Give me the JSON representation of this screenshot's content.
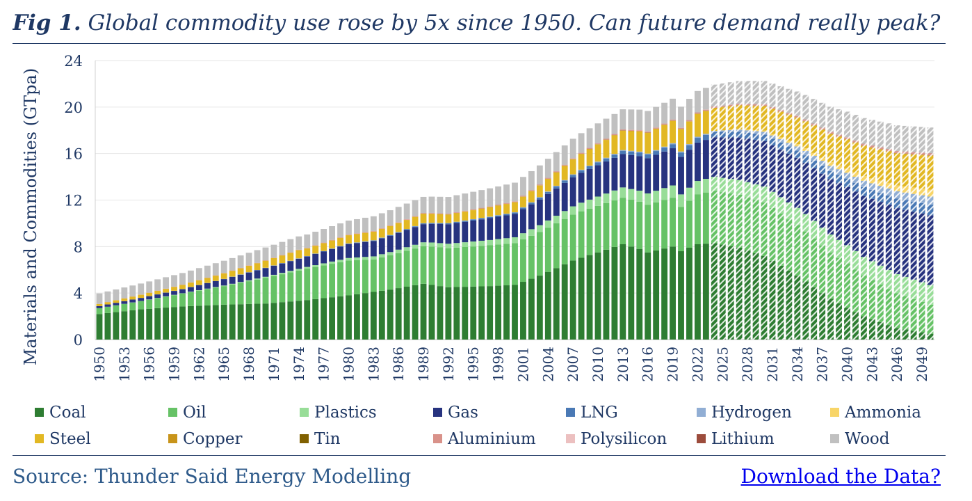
{
  "header": {
    "fig_label": "Fig 1.",
    "title": "Global commodity use rose by 5x since 1950. Can future demand really peak?"
  },
  "footer": {
    "source": "Source: Thunder Said Energy Modelling",
    "download_link": "Download the Data?"
  },
  "chart_data": {
    "type": "bar",
    "stacked": true,
    "projection_from_year": 2024,
    "projection_style": "hatched",
    "ylabel": "Materials and Commodities (GTpa)",
    "xlabel": "",
    "ylim": [
      0,
      24
    ],
    "yticks": [
      0,
      4,
      8,
      12,
      16,
      20,
      24
    ],
    "grid": "horizontal",
    "legend_position": "bottom",
    "x_start": 1950,
    "x_end": 2050,
    "x_tick_labels": [
      "1950",
      "1953",
      "1956",
      "1959",
      "1962",
      "1965",
      "1968",
      "1971",
      "1974",
      "1977",
      "1980",
      "1983",
      "1986",
      "1989",
      "1992",
      "1995",
      "1998",
      "2001",
      "2004",
      "2007",
      "2010",
      "2013",
      "2016",
      "2019",
      "2022",
      "2025",
      "2028",
      "2031",
      "2034",
      "2037",
      "2040",
      "2043",
      "2046",
      "2049"
    ],
    "series": [
      {
        "name": "Coal",
        "color": "#2e7d32",
        "knots": [
          [
            1950,
            2.2
          ],
          [
            1955,
            2.6
          ],
          [
            1960,
            2.85
          ],
          [
            1965,
            3.0
          ],
          [
            1970,
            3.1
          ],
          [
            1975,
            3.4
          ],
          [
            1980,
            3.8
          ],
          [
            1985,
            4.3
          ],
          [
            1989,
            4.8
          ],
          [
            1992,
            4.5
          ],
          [
            1997,
            4.6
          ],
          [
            2000,
            4.7
          ],
          [
            2003,
            5.5
          ],
          [
            2007,
            6.8
          ],
          [
            2010,
            7.5
          ],
          [
            2013,
            8.2
          ],
          [
            2015,
            7.8
          ],
          [
            2016,
            7.5
          ],
          [
            2019,
            8.0
          ],
          [
            2020,
            7.6
          ],
          [
            2022,
            8.2
          ],
          [
            2024,
            8.3
          ],
          [
            2027,
            7.9
          ],
          [
            2030,
            7.2
          ],
          [
            2034,
            5.5
          ],
          [
            2038,
            3.5
          ],
          [
            2042,
            2.0
          ],
          [
            2046,
            1.0
          ],
          [
            2050,
            0.5
          ]
        ]
      },
      {
        "name": "Oil",
        "color": "#66c266",
        "knots": [
          [
            1950,
            0.5
          ],
          [
            1955,
            0.7
          ],
          [
            1960,
            1.1
          ],
          [
            1965,
            1.6
          ],
          [
            1970,
            2.2
          ],
          [
            1975,
            2.7
          ],
          [
            1980,
            3.0
          ],
          [
            1983,
            2.8
          ],
          [
            1990,
            3.3
          ],
          [
            2000,
            3.6
          ],
          [
            2008,
            4.0
          ],
          [
            2013,
            4.0
          ],
          [
            2019,
            4.2
          ],
          [
            2020,
            3.8
          ],
          [
            2022,
            4.3
          ],
          [
            2024,
            4.5
          ],
          [
            2030,
            4.6
          ],
          [
            2035,
            4.3
          ],
          [
            2040,
            3.8
          ],
          [
            2045,
            3.1
          ],
          [
            2050,
            2.5
          ]
        ]
      },
      {
        "name": "Plastics",
        "color": "#98dd98",
        "knots": [
          [
            1950,
            0.0
          ],
          [
            1965,
            0.05
          ],
          [
            1975,
            0.15
          ],
          [
            1990,
            0.35
          ],
          [
            2000,
            0.5
          ],
          [
            2010,
            0.8
          ],
          [
            2024,
            1.2
          ],
          [
            2035,
            1.5
          ],
          [
            2050,
            1.7
          ]
        ]
      },
      {
        "name": "Gas",
        "color": "#27337f",
        "knots": [
          [
            1950,
            0.18
          ],
          [
            1960,
            0.35
          ],
          [
            1970,
            0.75
          ],
          [
            1975,
            0.9
          ],
          [
            1980,
            1.2
          ],
          [
            1990,
            1.6
          ],
          [
            2000,
            2.0
          ],
          [
            2010,
            2.7
          ],
          [
            2019,
            3.2
          ],
          [
            2022,
            3.3
          ],
          [
            2024,
            3.4
          ],
          [
            2030,
            3.9
          ],
          [
            2035,
            4.4
          ],
          [
            2040,
            5.0
          ],
          [
            2045,
            5.6
          ],
          [
            2050,
            6.0
          ]
        ]
      },
      {
        "name": "LNG",
        "color": "#4a79b5",
        "knots": [
          [
            1950,
            0.0
          ],
          [
            1975,
            0.02
          ],
          [
            1990,
            0.07
          ],
          [
            2000,
            0.12
          ],
          [
            2010,
            0.25
          ],
          [
            2019,
            0.35
          ],
          [
            2024,
            0.45
          ],
          [
            2035,
            0.65
          ],
          [
            2050,
            0.9
          ]
        ]
      },
      {
        "name": "Hydrogen",
        "color": "#91aed4",
        "knots": [
          [
            1950,
            0.0
          ],
          [
            2000,
            0.03
          ],
          [
            2024,
            0.1
          ],
          [
            2030,
            0.25
          ],
          [
            2040,
            0.5
          ],
          [
            2050,
            0.7
          ]
        ]
      },
      {
        "name": "Ammonia",
        "color": "#f8d568",
        "knots": [
          [
            1950,
            0.0
          ],
          [
            2024,
            0.0
          ],
          [
            2030,
            0.1
          ],
          [
            2040,
            0.35
          ],
          [
            2050,
            0.6
          ]
        ]
      },
      {
        "name": "Steel",
        "color": "#e2b823",
        "knots": [
          [
            1950,
            0.18
          ],
          [
            1960,
            0.35
          ],
          [
            1970,
            0.6
          ],
          [
            1974,
            0.7
          ],
          [
            1975,
            0.65
          ],
          [
            1980,
            0.7
          ],
          [
            1989,
            0.8
          ],
          [
            1992,
            0.72
          ],
          [
            2000,
            0.85
          ],
          [
            2003,
            1.0
          ],
          [
            2008,
            1.35
          ],
          [
            2013,
            1.65
          ],
          [
            2019,
            1.9
          ],
          [
            2022,
            1.95
          ],
          [
            2024,
            1.95
          ],
          [
            2030,
            2.1
          ],
          [
            2040,
            2.5
          ],
          [
            2050,
            2.9
          ]
        ]
      },
      {
        "name": "Copper",
        "color": "#c8941a",
        "knots": [
          [
            1950,
            0.0
          ],
          [
            2050,
            0.04
          ]
        ]
      },
      {
        "name": "Tin",
        "color": "#806000",
        "knots": [
          [
            1950,
            0.0
          ],
          [
            2050,
            0.01
          ]
        ]
      },
      {
        "name": "Aluminium",
        "color": "#d9928a",
        "knots": [
          [
            1950,
            0.01
          ],
          [
            2000,
            0.05
          ],
          [
            2024,
            0.08
          ],
          [
            2050,
            0.15
          ]
        ]
      },
      {
        "name": "Polysilicon",
        "color": "#ecc0c0",
        "knots": [
          [
            1950,
            0.0
          ],
          [
            2050,
            0.02
          ]
        ]
      },
      {
        "name": "Lithium",
        "color": "#9c4c3c",
        "knots": [
          [
            1950,
            0.0
          ],
          [
            2050,
            0.02
          ]
        ]
      },
      {
        "name": "Wood",
        "color": "#c0c0c0",
        "knots": [
          [
            1950,
            0.9
          ],
          [
            1960,
            1.0
          ],
          [
            1970,
            1.1
          ],
          [
            1980,
            1.2
          ],
          [
            1990,
            1.4
          ],
          [
            2000,
            1.6
          ],
          [
            2010,
            1.7
          ],
          [
            2020,
            1.8
          ],
          [
            2030,
            2.0
          ],
          [
            2040,
            2.2
          ],
          [
            2050,
            2.2
          ]
        ]
      }
    ]
  }
}
